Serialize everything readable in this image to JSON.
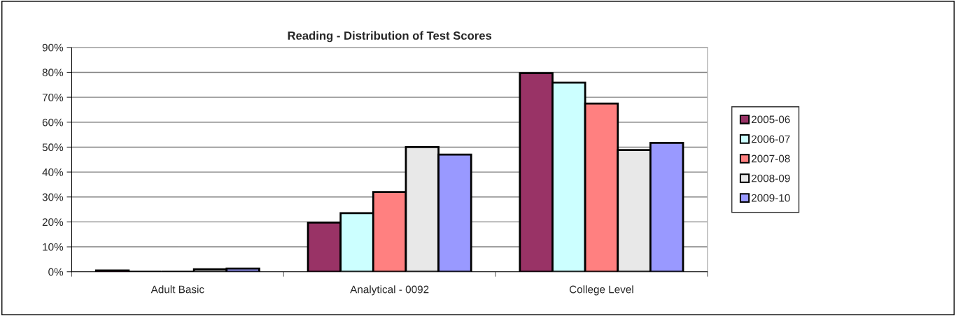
{
  "chart_data": {
    "type": "bar",
    "title": "Reading - Distribution of Test Scores",
    "categories": [
      "Adult Basic",
      "Analytical - 0092",
      "College Level"
    ],
    "series": [
      {
        "name": "2005-06",
        "color": "#993366",
        "values": [
          0.5,
          19.7,
          79.7
        ]
      },
      {
        "name": "2006-07",
        "color": "#ccffff",
        "values": [
          null,
          23.5,
          75.9
        ]
      },
      {
        "name": "2007-08",
        "color": "#ff8080",
        "values": [
          null,
          32,
          67.5
        ]
      },
      {
        "name": "2008-09",
        "color": "#e8e8e8",
        "values": [
          1.0,
          50,
          48.8
        ]
      },
      {
        "name": "2009-10",
        "color": "#9999ff",
        "values": [
          1.3,
          47,
          51.7
        ]
      }
    ],
    "ylim": [
      0,
      90
    ],
    "yticks": [
      {
        "value": 0,
        "label": "0%"
      },
      {
        "value": 10,
        "label": "10%"
      },
      {
        "value": 20,
        "label": "20%"
      },
      {
        "value": 30,
        "label": "30%"
      },
      {
        "value": 40,
        "label": "40%"
      },
      {
        "value": 50,
        "label": "50%"
      },
      {
        "value": 60,
        "label": "60%"
      },
      {
        "value": 70,
        "label": "70%"
      },
      {
        "value": 80,
        "label": "80%"
      },
      {
        "value": 90,
        "label": "90%"
      }
    ],
    "grid": "y",
    "legend": "right"
  }
}
